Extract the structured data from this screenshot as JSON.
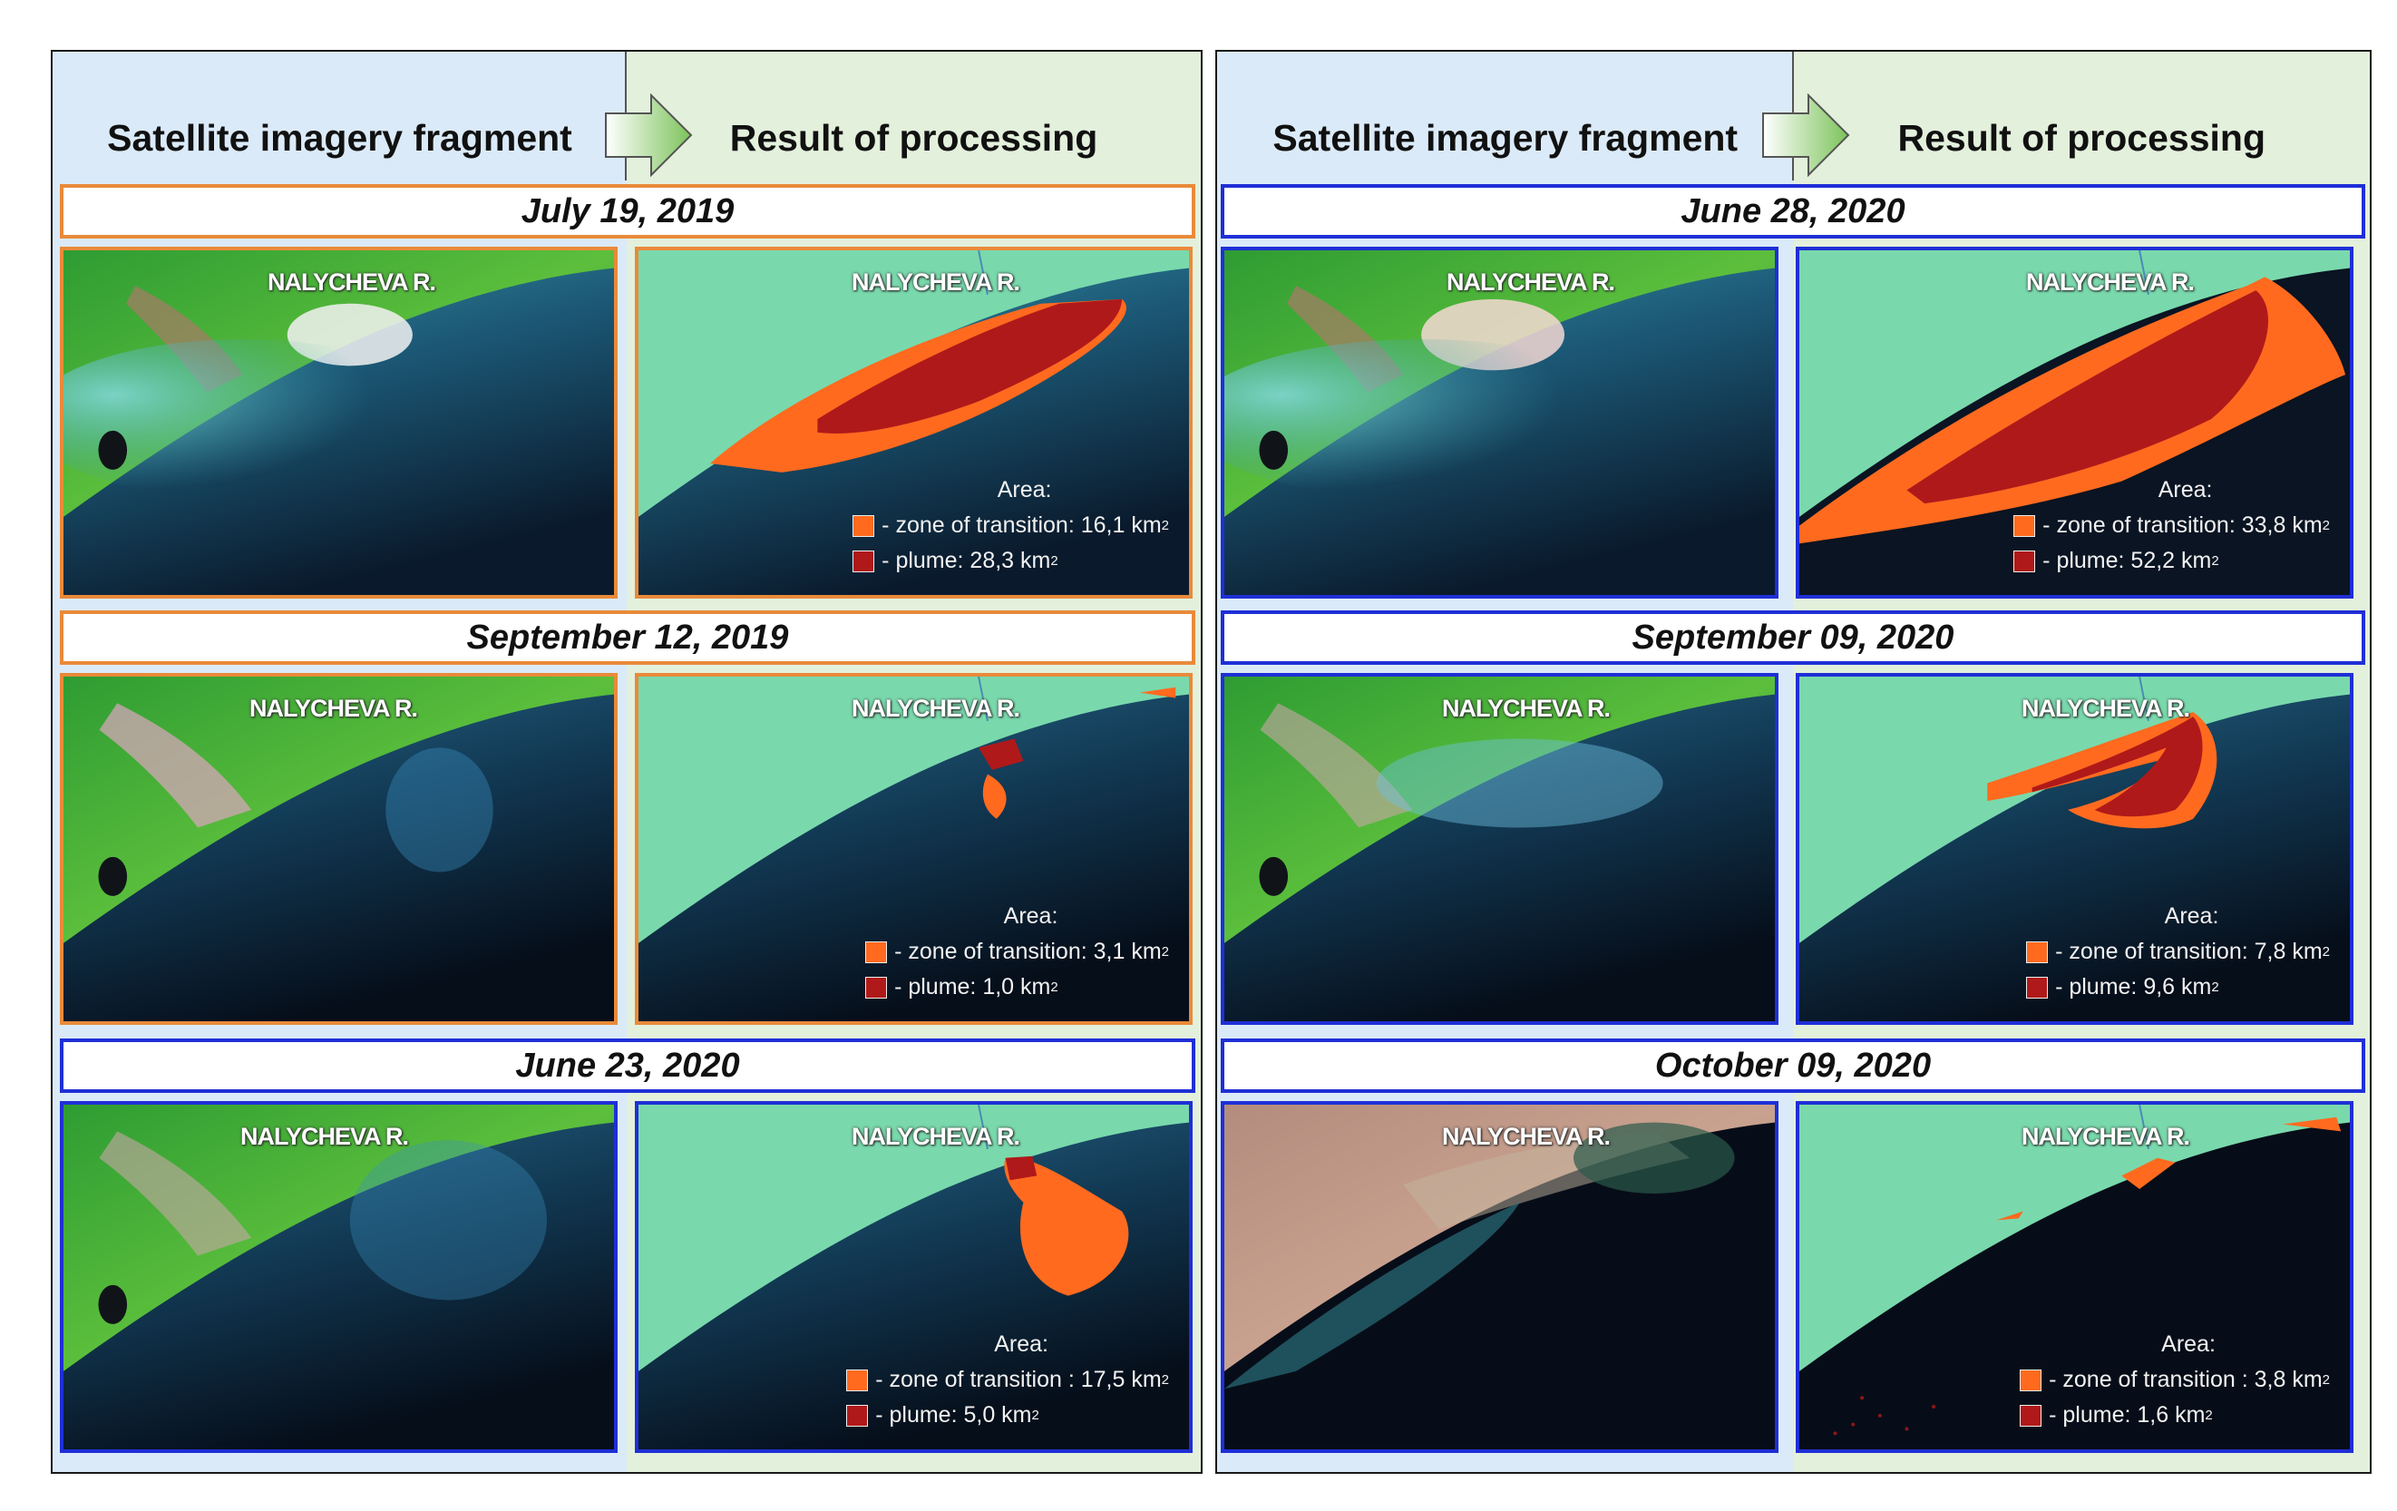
{
  "headers": {
    "left_col": {
      "source": "Satellite imagery fragment",
      "result": "Result of processing"
    },
    "right_col": {
      "source": "Satellite imagery fragment",
      "result": "Result of processing"
    }
  },
  "river_label": "NALYCHEVA R.",
  "legend_title": "Area:",
  "colors": {
    "transition": "#ff6a1f",
    "plume": "#b0191a",
    "land": "#79d9ac",
    "orange_frame": "#e98a3a",
    "blue_frame": "#1f2fd6"
  },
  "events": [
    {
      "date": "July 19, 2019",
      "transition": "- zone of transition: 16,1 km",
      "plume": "- plume: 28,3 km"
    },
    {
      "date": "September 12, 2019",
      "transition": "- zone of transition: 3,1 km",
      "plume": "- plume: 1,0 km"
    },
    {
      "date": "June 23, 2020",
      "transition": "- zone of transition : 17,5 km",
      "plume": "- plume: 5,0 km"
    },
    {
      "date": "June 28, 2020",
      "transition": "- zone of transition: 33,8 km",
      "plume": "- plume: 52,2 km"
    },
    {
      "date": "September 09, 2020",
      "transition": "- zone of transition: 7,8 km",
      "plume": "- plume: 9,6 km"
    },
    {
      "date": "October 09, 2020",
      "transition": "- zone of transition : 3,8 km",
      "plume": "- plume: 1,6 km"
    }
  ],
  "sq_unit": "2"
}
